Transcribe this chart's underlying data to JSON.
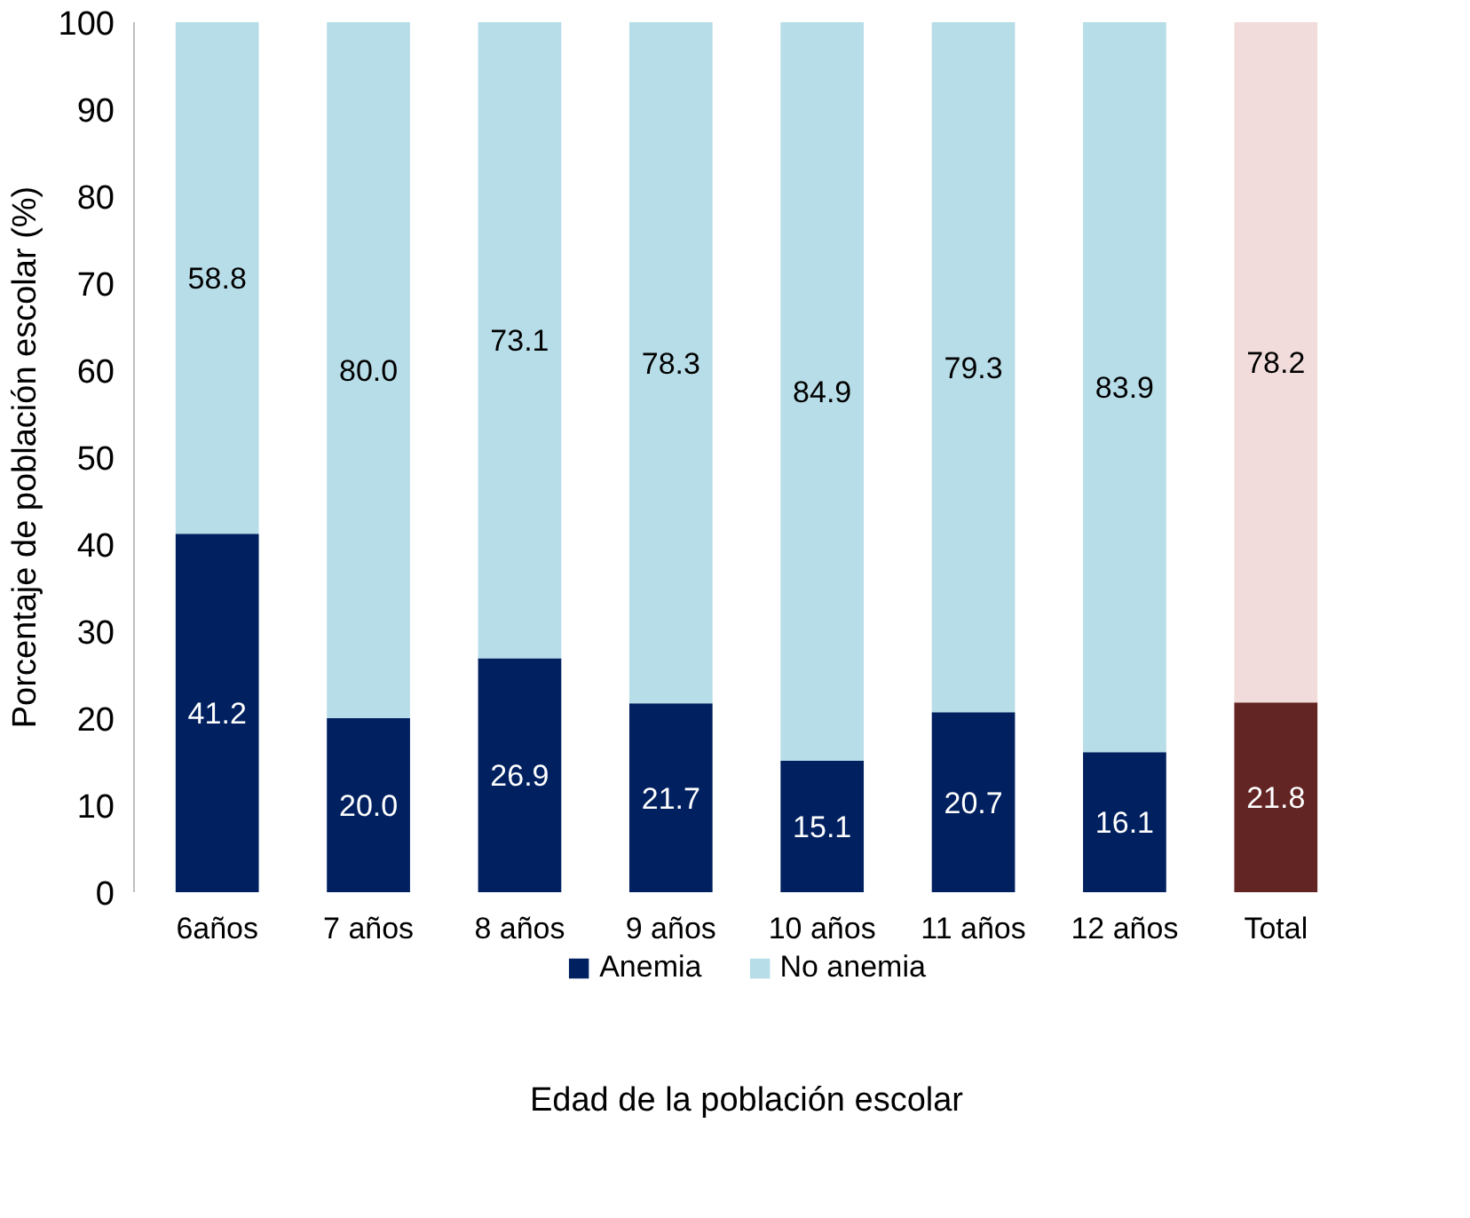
{
  "chart_data": {
    "type": "bar",
    "stacked": true,
    "xlabel": "Edad de la población escolar",
    "ylabel": "Porcentaje de población escolar (%)",
    "categories": [
      "6años",
      "7 años",
      "8 años",
      "9 años",
      "10 años",
      "11 años",
      "12 años",
      "Total"
    ],
    "series": [
      {
        "name": "Anemia",
        "color": "#002060",
        "colors": [
          "#002060",
          "#002060",
          "#002060",
          "#002060",
          "#002060",
          "#002060",
          "#002060",
          "#632523"
        ],
        "values": [
          41.2,
          20.0,
          26.9,
          21.7,
          15.1,
          20.7,
          16.1,
          21.8
        ],
        "value_labels": [
          "41.2",
          "20.0",
          "26.9",
          "21.7",
          "15.1",
          "20.7",
          "16.1",
          "21.8"
        ]
      },
      {
        "name": "No anemia",
        "color": "#b7dde8",
        "colors": [
          "#b7dde8",
          "#b7dde8",
          "#b7dde8",
          "#b7dde8",
          "#b7dde8",
          "#b7dde8",
          "#b7dde8",
          "#f2dcdb"
        ],
        "values": [
          58.8,
          80.0,
          73.1,
          78.3,
          84.9,
          79.3,
          83.9,
          78.2
        ],
        "value_labels": [
          "58.8",
          "80.0",
          "73.1",
          "78.3",
          "84.9",
          "79.3",
          "83.9",
          "78.2"
        ]
      }
    ],
    "ylim": [
      0,
      100
    ],
    "yticks": [
      0,
      10,
      20,
      30,
      40,
      50,
      60,
      70,
      80,
      90,
      100
    ],
    "grid": false,
    "legend": "bottom"
  }
}
